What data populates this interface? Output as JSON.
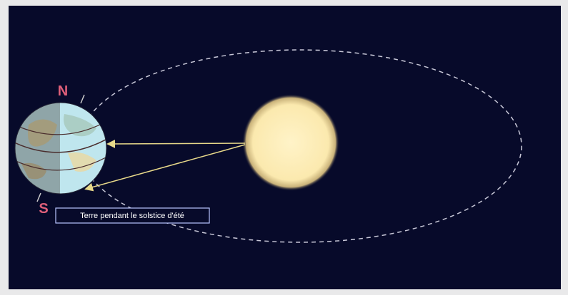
{
  "labels": {
    "north": "N",
    "south": "S",
    "caption": "Terre pendant le solstice d'été"
  }
}
